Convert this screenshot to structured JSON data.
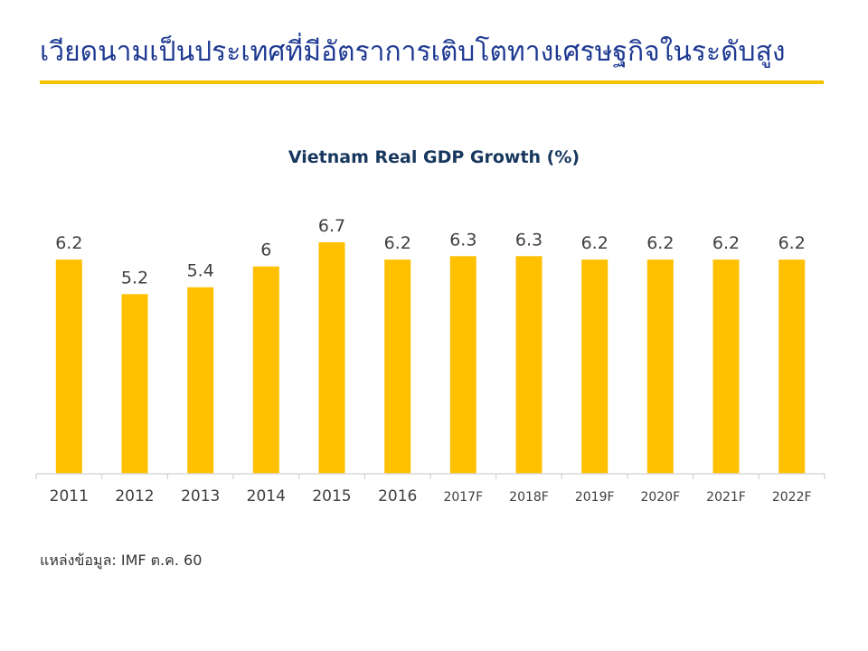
{
  "slide": {
    "title": "เวียดนามเป็นประเทศที่มีอัตราการเติบโตทางเศรษฐกิจในระดับสูง",
    "source": "แหล่งข้อมูล: IMF ต.ค. 60"
  },
  "colors": {
    "title": "#1f3a93",
    "accent": "#f5c200",
    "bar": "#ffc000",
    "axis": "#d9d9d9",
    "label": "#404040"
  },
  "chart_data": {
    "type": "bar",
    "title": "Vietnam Real GDP Growth (%)",
    "xlabel": "",
    "ylabel": "",
    "ylim": [
      0,
      7.4
    ],
    "grid": false,
    "categories": [
      "2011",
      "2012",
      "2013",
      "2014",
      "2015",
      "2016",
      "2017F",
      "2018F",
      "2019F",
      "2020F",
      "2021F",
      "2022F"
    ],
    "values": [
      6.2,
      5.2,
      5.4,
      6,
      6.7,
      6.2,
      6.3,
      6.3,
      6.2,
      6.2,
      6.2,
      6.2
    ]
  }
}
